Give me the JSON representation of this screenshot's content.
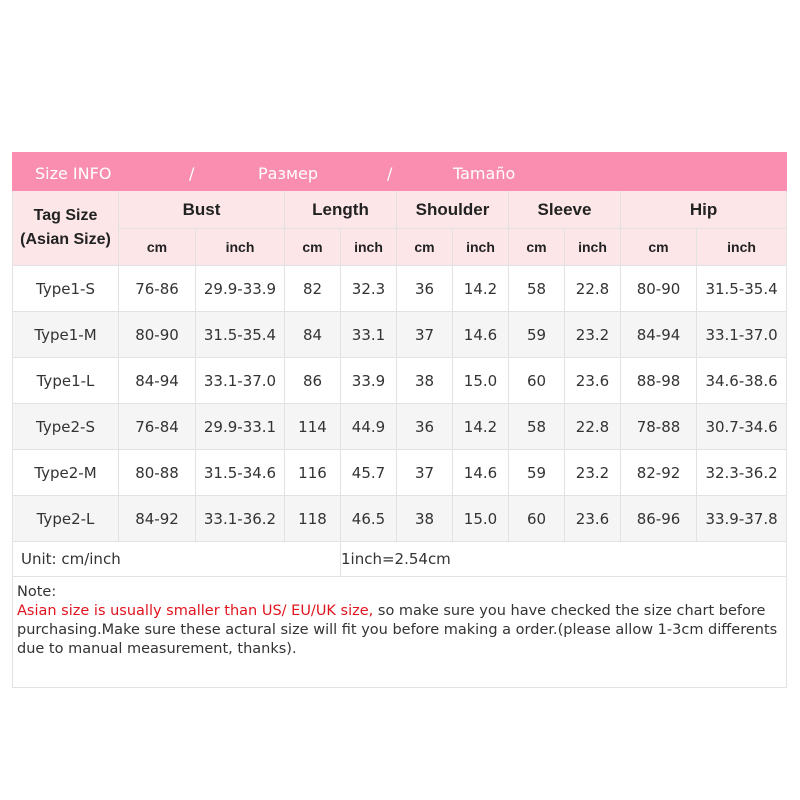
{
  "title_bar": {
    "parts": [
      "Size INFO",
      "/",
      "Размер",
      "/",
      "Tamaño"
    ],
    "color": "#f98eb0"
  },
  "header": {
    "tag_size": "Tag Size",
    "asian_size": "(Asian Size)",
    "groups": [
      "Bust",
      "Length",
      "Shoulder",
      "Sleeve",
      "Hip"
    ],
    "units": [
      "cm",
      "inch"
    ]
  },
  "rows": [
    [
      "Type1-S",
      "76-86",
      "29.9-33.9",
      "82",
      "32.3",
      "36",
      "14.2",
      "58",
      "22.8",
      "80-90",
      "31.5-35.4"
    ],
    [
      "Type1-M",
      "80-90",
      "31.5-35.4",
      "84",
      "33.1",
      "37",
      "14.6",
      "59",
      "23.2",
      "84-94",
      "33.1-37.0"
    ],
    [
      "Type1-L",
      "84-94",
      "33.1-37.0",
      "86",
      "33.9",
      "38",
      "15.0",
      "60",
      "23.6",
      "88-98",
      "34.6-38.6"
    ],
    [
      "Type2-S",
      "76-84",
      "29.9-33.1",
      "114",
      "44.9",
      "36",
      "14.2",
      "58",
      "22.8",
      "78-88",
      "30.7-34.6"
    ],
    [
      "Type2-M",
      "80-88",
      "31.5-34.6",
      "116",
      "45.7",
      "37",
      "14.6",
      "59",
      "23.2",
      "82-92",
      "32.3-36.2"
    ],
    [
      "Type2-L",
      "84-92",
      "33.1-36.2",
      "118",
      "46.5",
      "38",
      "15.0",
      "60",
      "23.6",
      "86-96",
      "33.9-37.8"
    ]
  ],
  "unit_row": {
    "unit": "Unit: cm/inch",
    "conversion": "1inch=2.54cm"
  },
  "note": {
    "label": "Note:",
    "warning": "Asian size is usually smaller than US/ EU/UK size,",
    "text": " so make sure you have checked the size chart before purchasing.Make sure these actural size will fit you before making a order.(please allow 1-3cm differents due to manual measurement, thanks).",
    "warning_color": "#e0141e"
  }
}
